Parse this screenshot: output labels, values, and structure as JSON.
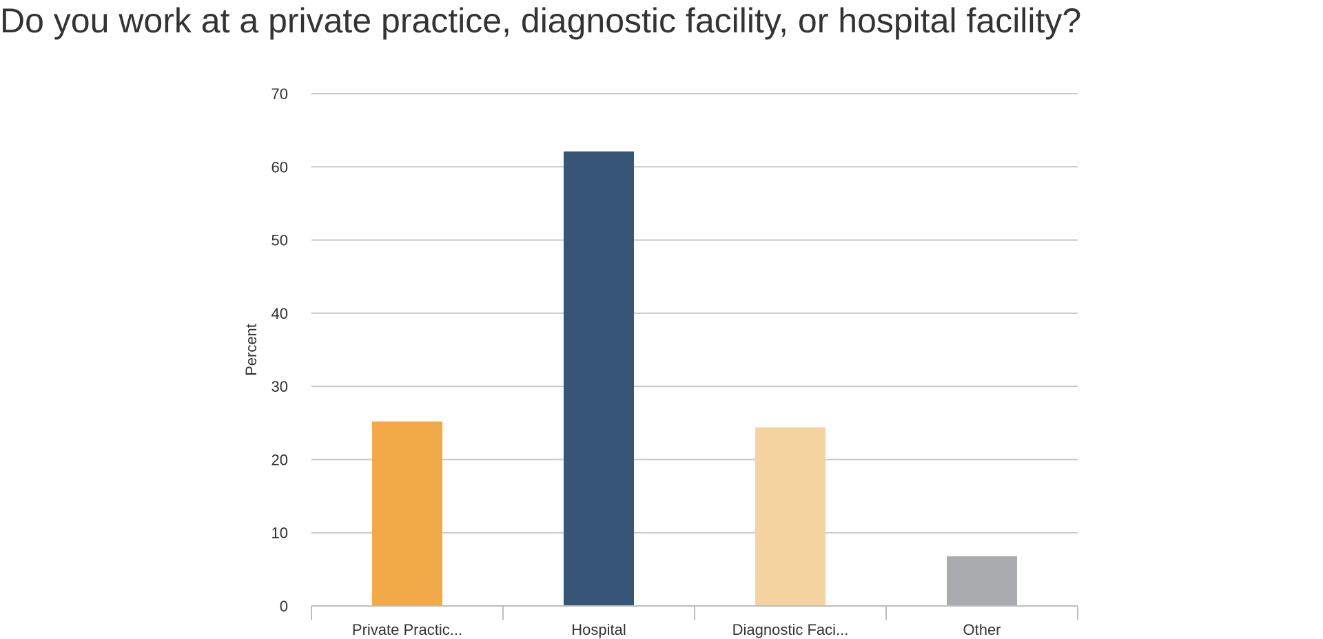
{
  "chart_data": {
    "type": "bar",
    "title": "Do you work at a private practice, diagnostic facility, or hospital facility?",
    "xlabel": "",
    "ylabel": "Percent",
    "categories": [
      "Private Practic...",
      "Hospital",
      "Diagnostic Faci...",
      "Other"
    ],
    "values": [
      25.2,
      62.1,
      24.4,
      6.8
    ],
    "colors": [
      "#F2A947",
      "#375677",
      "#F4D3A0",
      "#AAABAE"
    ],
    "ylim": [
      0,
      70
    ],
    "yticks": [
      "0",
      "10",
      "20",
      "30",
      "40",
      "50",
      "60",
      "70"
    ],
    "grid": true,
    "legend": "none"
  }
}
